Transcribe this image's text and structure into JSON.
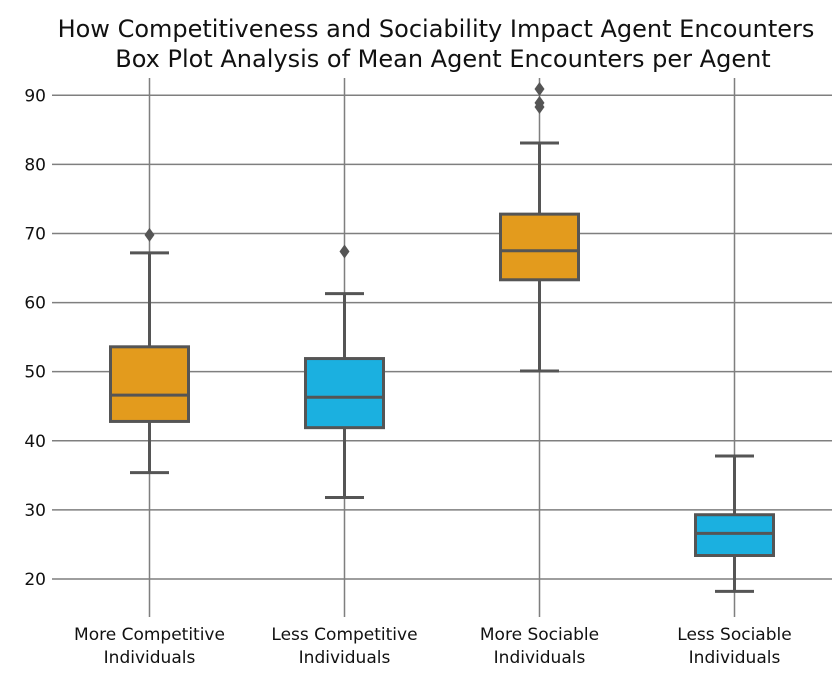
{
  "chart_data": {
    "type": "box",
    "title": "How Competitiveness and Sociability Impact Agent Encounters",
    "subtitle": "Box Plot Analysis of Mean Agent Encounters per Agent",
    "xlabel": "",
    "ylabel": "",
    "ylim": [
      14.5,
      92.5
    ],
    "yticks": [
      20,
      30,
      40,
      50,
      60,
      70,
      80,
      90
    ],
    "grid": true,
    "categories": [
      {
        "label_line1": "More Competitive",
        "label_line2": "Individuals",
        "q1": 42.8,
        "median": 46.6,
        "q3": 53.6,
        "whisker_low": 35.4,
        "whisker_high": 67.2,
        "outliers": [
          69.8
        ],
        "color": "#E39B1D"
      },
      {
        "label_line1": "Less Competitive",
        "label_line2": "Individuals",
        "q1": 41.9,
        "median": 46.3,
        "q3": 51.9,
        "whisker_low": 31.8,
        "whisker_high": 61.3,
        "outliers": [
          67.4
        ],
        "color": "#1BB0E0"
      },
      {
        "label_line1": "More Sociable",
        "label_line2": "Individuals",
        "q1": 63.3,
        "median": 67.5,
        "q3": 72.8,
        "whisker_low": 50.1,
        "whisker_high": 83.1,
        "outliers": [
          88.3,
          88.9,
          90.9
        ],
        "color": "#E39B1D"
      },
      {
        "label_line1": "Less Sociable",
        "label_line2": "Individuals",
        "q1": 23.4,
        "median": 26.6,
        "q3": 29.3,
        "whisker_low": 18.2,
        "whisker_high": 37.8,
        "outliers": [],
        "color": "#1BB0E0"
      }
    ],
    "colors": {
      "grid": "#7f7f7f",
      "box_edge": "#555555",
      "background": "#ffffff"
    }
  }
}
